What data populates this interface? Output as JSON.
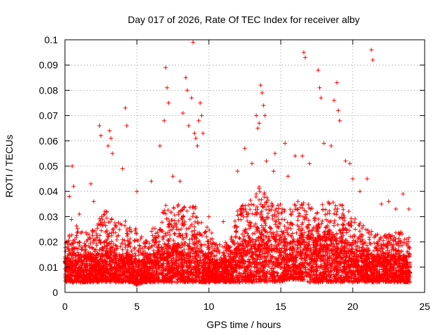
{
  "chart_data": {
    "type": "scatter",
    "title": "Day 017 of 2026, Rate Of TEC Index for receiver alby",
    "xlabel": "GPS time / hours",
    "ylabel": "ROTI / TECUs",
    "xlim": [
      0,
      25
    ],
    "ylim": [
      0,
      0.1
    ],
    "xticks": [
      0,
      5,
      10,
      15,
      20,
      25
    ],
    "yticks": [
      0,
      0.01,
      0.02,
      0.03,
      0.04,
      0.05,
      0.06,
      0.07,
      0.08,
      0.09,
      0.1
    ],
    "xtick_labels": [
      "0",
      "5",
      "10",
      "15",
      "20",
      "25"
    ],
    "ytick_labels": [
      "0",
      "0.01",
      "0.02",
      "0.03",
      "0.04",
      "0.05",
      "0.06",
      "0.07",
      "0.08",
      "0.09",
      "0.1"
    ],
    "grid": true,
    "marker": "+",
    "marker_color": "#ff0000",
    "series": [
      {
        "marker": "+",
        "color": "#ff0000",
        "x": [
          0.3,
          0.5,
          0.6,
          1.8,
          2.4,
          2.5,
          3.0,
          3.1,
          3.2,
          3.3,
          4.2,
          4.3,
          6.6,
          6.9,
          7.0,
          7.1,
          7.2,
          8.2,
          8.4,
          8.5,
          8.6,
          8.8,
          8.9,
          9.0,
          9.1,
          9.2,
          9.3,
          9.4,
          9.5,
          9.6,
          13.3,
          13.4,
          13.5,
          13.6,
          13.7,
          13.8,
          13.9,
          14.6,
          15.3,
          16.6,
          16.7,
          17.6,
          17.7,
          17.8,
          18.7,
          18.9,
          19.0,
          19.1,
          19.5,
          21.3,
          21.4,
          1.0,
          2.0,
          4.0,
          5.0,
          6.0,
          7.5,
          8.0,
          10.0,
          11.0,
          12.0,
          12.5,
          13.0,
          14.0,
          14.5,
          15.5,
          16.0,
          16.5,
          17.0,
          18.0,
          18.5,
          19.8,
          20.0,
          20.5,
          21.0,
          22.0,
          22.5,
          23.0,
          23.5,
          23.9
        ],
        "y": [
          0.038,
          0.05,
          0.042,
          0.043,
          0.066,
          0.062,
          0.058,
          0.064,
          0.061,
          0.055,
          0.073,
          0.066,
          0.058,
          0.068,
          0.089,
          0.081,
          0.075,
          0.071,
          0.085,
          0.08,
          0.066,
          0.077,
          0.099,
          0.063,
          0.061,
          0.058,
          0.068,
          0.075,
          0.07,
          0.063,
          0.07,
          0.065,
          0.067,
          0.082,
          0.079,
          0.074,
          0.07,
          0.055,
          0.059,
          0.095,
          0.093,
          0.088,
          0.081,
          0.077,
          0.076,
          0.083,
          0.072,
          0.068,
          0.052,
          0.096,
          0.092,
          0.031,
          0.036,
          0.049,
          0.04,
          0.044,
          0.046,
          0.044,
          0.03,
          0.028,
          0.048,
          0.057,
          0.051,
          0.052,
          0.048,
          0.046,
          0.054,
          0.054,
          0.051,
          0.059,
          0.058,
          0.051,
          0.045,
          0.04,
          0.045,
          0.035,
          0.036,
          0.033,
          0.039,
          0.033
        ]
      }
    ],
    "envelope": {
      "x": [
        0,
        0.5,
        1,
        1.5,
        2,
        2.5,
        3,
        3.5,
        4,
        4.5,
        5,
        5.5,
        6,
        6.5,
        7,
        7.5,
        8,
        8.5,
        9,
        9.5,
        10,
        10.5,
        11,
        11.5,
        12,
        12.5,
        13,
        13.5,
        14,
        14.5,
        15,
        15.5,
        16,
        16.5,
        17,
        17.5,
        18,
        18.5,
        19,
        19.5,
        20,
        20.5,
        21,
        21.5,
        22,
        22.5,
        23,
        23.5,
        24
      ],
      "base": [
        0.004,
        0.004,
        0.004,
        0.004,
        0.004,
        0.004,
        0.004,
        0.004,
        0.004,
        0.004,
        0.003,
        0.004,
        0.004,
        0.004,
        0.004,
        0.004,
        0.004,
        0.004,
        0.004,
        0.004,
        0.004,
        0.004,
        0.004,
        0.004,
        0.004,
        0.004,
        0.004,
        0.004,
        0.004,
        0.004,
        0.004,
        0.005,
        0.005,
        0.005,
        0.004,
        0.004,
        0.004,
        0.004,
        0.004,
        0.004,
        0.004,
        0.004,
        0.004,
        0.004,
        0.004,
        0.004,
        0.004,
        0.004,
        0.004
      ],
      "upper": [
        0.022,
        0.03,
        0.024,
        0.024,
        0.026,
        0.03,
        0.034,
        0.028,
        0.03,
        0.026,
        0.026,
        0.02,
        0.024,
        0.03,
        0.036,
        0.034,
        0.036,
        0.034,
        0.036,
        0.03,
        0.026,
        0.02,
        0.02,
        0.02,
        0.034,
        0.036,
        0.038,
        0.042,
        0.04,
        0.036,
        0.036,
        0.032,
        0.036,
        0.036,
        0.036,
        0.034,
        0.036,
        0.036,
        0.036,
        0.034,
        0.032,
        0.028,
        0.026,
        0.024,
        0.022,
        0.024,
        0.024,
        0.024,
        0.022
      ],
      "dense_top": [
        0.014,
        0.016,
        0.014,
        0.014,
        0.014,
        0.016,
        0.016,
        0.014,
        0.014,
        0.014,
        0.014,
        0.012,
        0.014,
        0.016,
        0.018,
        0.018,
        0.018,
        0.016,
        0.018,
        0.016,
        0.014,
        0.012,
        0.012,
        0.012,
        0.018,
        0.02,
        0.022,
        0.024,
        0.024,
        0.022,
        0.022,
        0.02,
        0.02,
        0.022,
        0.022,
        0.02,
        0.022,
        0.022,
        0.022,
        0.02,
        0.018,
        0.016,
        0.016,
        0.014,
        0.014,
        0.014,
        0.014,
        0.014,
        0.014
      ]
    },
    "x_data_range": [
      0,
      24
    ]
  }
}
